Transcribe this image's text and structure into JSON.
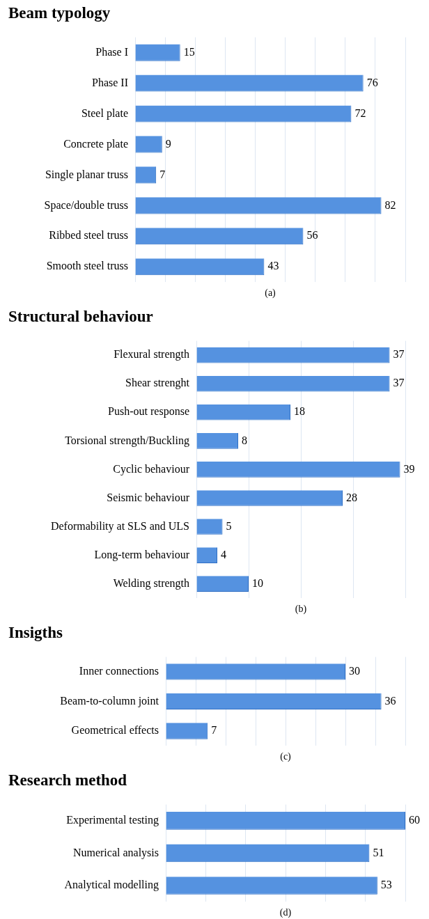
{
  "chart_data": [
    {
      "type": "bar",
      "orientation": "horizontal",
      "title": "Beam typology",
      "xlabel": "(a)",
      "categories": [
        "Phase I",
        "Phase II",
        "Steel plate",
        "Concrete plate",
        "Single planar truss",
        "Space/double truss",
        "Ribbed steel truss",
        "Smooth steel truss"
      ],
      "values": [
        15,
        76,
        72,
        9,
        7,
        82,
        56,
        43
      ],
      "color": "#5592e0",
      "data_labels": true,
      "grid": "x",
      "tick_labels": "y"
    },
    {
      "type": "bar",
      "orientation": "horizontal",
      "title": "Structural behaviour",
      "xlabel": "(b)",
      "categories": [
        "Flexural strength",
        "Shear strenght",
        "Push-out response",
        "Torsional strength/Buckling",
        "Cyclic behaviour",
        "Seismic behaviour",
        "Deformability at SLS and ULS",
        "Long-term behaviour",
        "Welding strength"
      ],
      "values": [
        37,
        37,
        18,
        8,
        39,
        28,
        5,
        4,
        10
      ],
      "color": "#5592e0",
      "data_labels": true,
      "grid": "x",
      "tick_labels": "y"
    },
    {
      "type": "bar",
      "orientation": "horizontal",
      "title": "Insigths",
      "xlabel": "(c)",
      "categories": [
        "Inner connections",
        "Beam-to-column joint",
        "Geometrical effects"
      ],
      "values": [
        30,
        36,
        7
      ],
      "color": "#5592e0",
      "data_labels": true,
      "grid": "x",
      "tick_labels": "y"
    },
    {
      "type": "bar",
      "orientation": "horizontal",
      "title": "Research method",
      "xlabel": "(d)",
      "categories": [
        "Experimental testing",
        "Numerical analysis",
        "Analytical modelling"
      ],
      "values": [
        60,
        51,
        53
      ],
      "color": "#5592e0",
      "data_labels": true,
      "grid": "x",
      "tick_labels": "y"
    }
  ]
}
